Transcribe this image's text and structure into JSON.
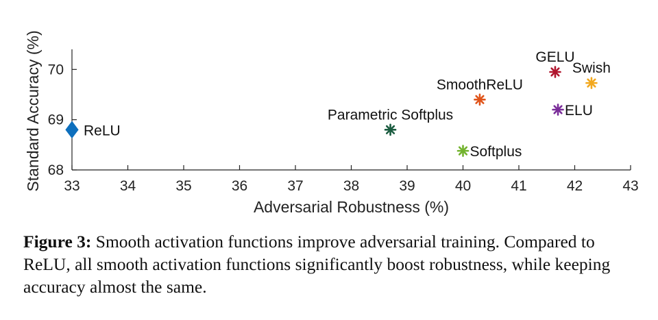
{
  "chart_data": {
    "type": "scatter",
    "xlabel": "Adversarial Robustness (%)",
    "ylabel": "Standard Accuracy (%)",
    "xlim": [
      33,
      43
    ],
    "ylim": [
      68,
      70.4
    ],
    "xticks": [
      33,
      34,
      35,
      36,
      37,
      38,
      39,
      40,
      41,
      42,
      43
    ],
    "yticks": [
      68,
      69,
      70
    ],
    "grid": false,
    "legend": "none",
    "points": [
      {
        "label": "ReLU",
        "x": 33.0,
        "y": 68.8,
        "marker": "diamond",
        "color": "#0d6fbd",
        "label_pos": "right"
      },
      {
        "label": "Parametric Softplus",
        "x": 38.7,
        "y": 68.8,
        "marker": "asterisk",
        "color": "#1b5c40",
        "label_pos": "above"
      },
      {
        "label": "SmoothReLU",
        "x": 40.3,
        "y": 69.4,
        "marker": "asterisk",
        "color": "#e0541a",
        "label_pos": "above"
      },
      {
        "label": "Softplus",
        "x": 40.0,
        "y": 68.38,
        "marker": "asterisk",
        "color": "#73b32e",
        "label_pos": "right"
      },
      {
        "label": "GELU",
        "x": 41.65,
        "y": 69.95,
        "marker": "asterisk",
        "color": "#b0162e",
        "label_pos": "above"
      },
      {
        "label": "ELU",
        "x": 41.7,
        "y": 69.2,
        "marker": "asterisk",
        "color": "#7a2d99",
        "label_pos": "right"
      },
      {
        "label": "Swish",
        "x": 42.3,
        "y": 69.73,
        "marker": "asterisk",
        "color": "#f2a81e",
        "label_pos": "above"
      }
    ]
  },
  "caption": {
    "label": "Figure 3:",
    "text": " Smooth activation functions improve adversarial training. Compared to ReLU, all smooth activation functions significantly boost robustness, while keeping accuracy almost the same."
  }
}
